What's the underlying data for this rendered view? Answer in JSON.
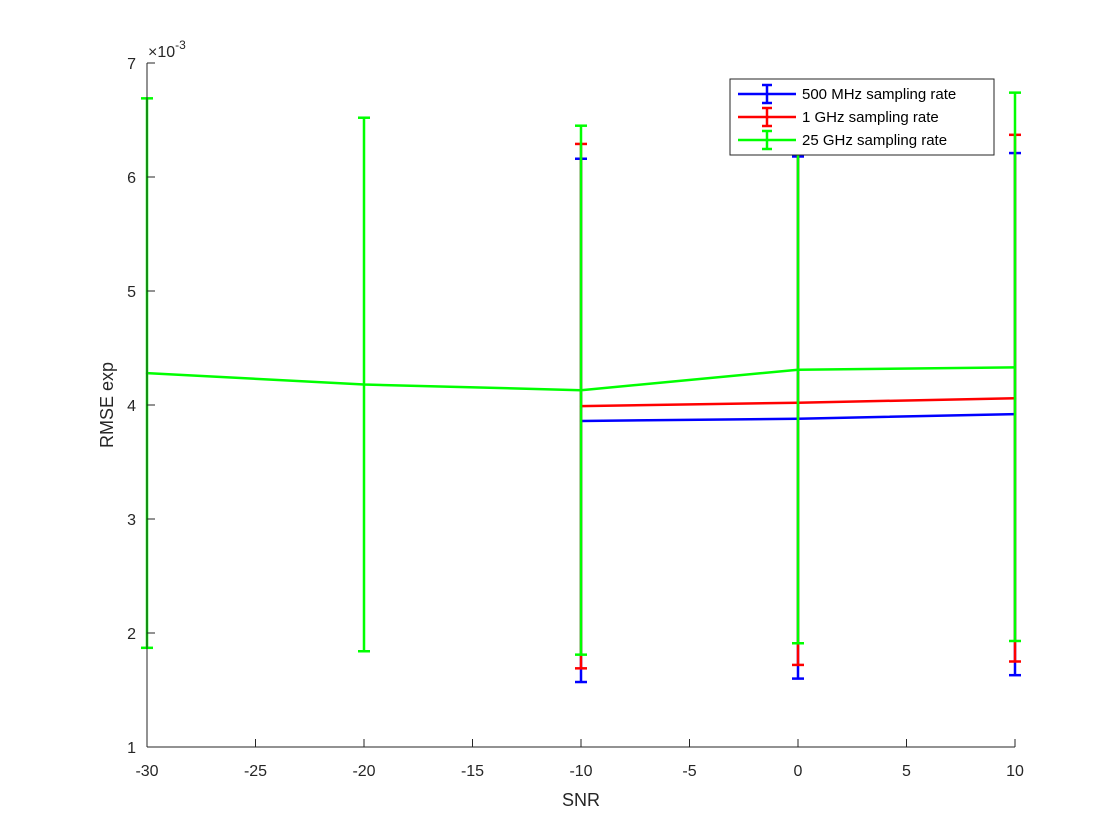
{
  "chart_data": {
    "type": "line",
    "xlabel": "SNR",
    "ylabel": "RMSE exp",
    "y_exponent_label": "×10",
    "y_exponent_power": "-3",
    "xlim": [
      -30,
      10
    ],
    "ylim": [
      1,
      7
    ],
    "xticks": [
      "-30",
      "-25",
      "-20",
      "-15",
      "-10",
      "-5",
      "0",
      "5",
      "10"
    ],
    "yticks": [
      "1",
      "2",
      "3",
      "4",
      "5",
      "6",
      "7"
    ],
    "error_bars": true,
    "legend_position": "top-right",
    "series": [
      {
        "name": "500 MHz sampling rate",
        "color": "#0000ff",
        "x": [
          -10,
          0,
          10
        ],
        "y": [
          3.86,
          3.88,
          3.92
        ],
        "lower": [
          1.57,
          1.6,
          1.63
        ],
        "upper": [
          6.16,
          6.18,
          6.21
        ]
      },
      {
        "name": "1 GHz sampling rate",
        "color": "#ff0000",
        "x": [
          -10,
          0,
          10
        ],
        "y": [
          3.99,
          4.02,
          4.06
        ],
        "lower": [
          1.69,
          1.72,
          1.75
        ],
        "upper": [
          6.29,
          6.32,
          6.37
        ]
      },
      {
        "name": "25 GHz sampling rate",
        "color": "#00ff00",
        "x": [
          -30,
          -20,
          -10,
          0,
          10
        ],
        "y": [
          4.28,
          4.18,
          4.13,
          4.31,
          4.33
        ],
        "lower": [
          1.87,
          1.84,
          1.81,
          1.91,
          1.93
        ],
        "upper": [
          6.69,
          6.52,
          6.45,
          6.71,
          6.74
        ]
      }
    ]
  }
}
